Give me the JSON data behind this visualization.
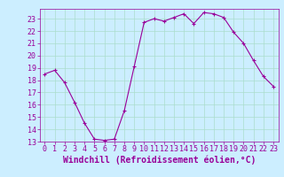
{
  "x": [
    0,
    1,
    2,
    3,
    4,
    5,
    6,
    7,
    8,
    9,
    10,
    11,
    12,
    13,
    14,
    15,
    16,
    17,
    18,
    19,
    20,
    21,
    22,
    23
  ],
  "y": [
    18.5,
    18.8,
    17.8,
    16.2,
    14.5,
    13.2,
    13.1,
    13.2,
    15.5,
    19.1,
    22.7,
    23.0,
    22.8,
    23.1,
    23.4,
    22.6,
    23.5,
    23.4,
    23.1,
    21.9,
    21.0,
    19.6,
    18.3,
    17.5
  ],
  "line_color": "#990099",
  "marker": "+",
  "marker_size": 3,
  "bg_color": "#cceeff",
  "grid_color": "#aaddcc",
  "xlabel": "Windchill (Refroidissement éolien,°C)",
  "xlim": [
    -0.5,
    23.5
  ],
  "ylim": [
    13,
    23.8
  ],
  "yticks": [
    13,
    14,
    15,
    16,
    17,
    18,
    19,
    20,
    21,
    22,
    23
  ],
  "xticks": [
    0,
    1,
    2,
    3,
    4,
    5,
    6,
    7,
    8,
    9,
    10,
    11,
    12,
    13,
    14,
    15,
    16,
    17,
    18,
    19,
    20,
    21,
    22,
    23
  ],
  "tick_color": "#990099",
  "label_color": "#990099",
  "label_fontsize": 7,
  "tick_fontsize": 6
}
